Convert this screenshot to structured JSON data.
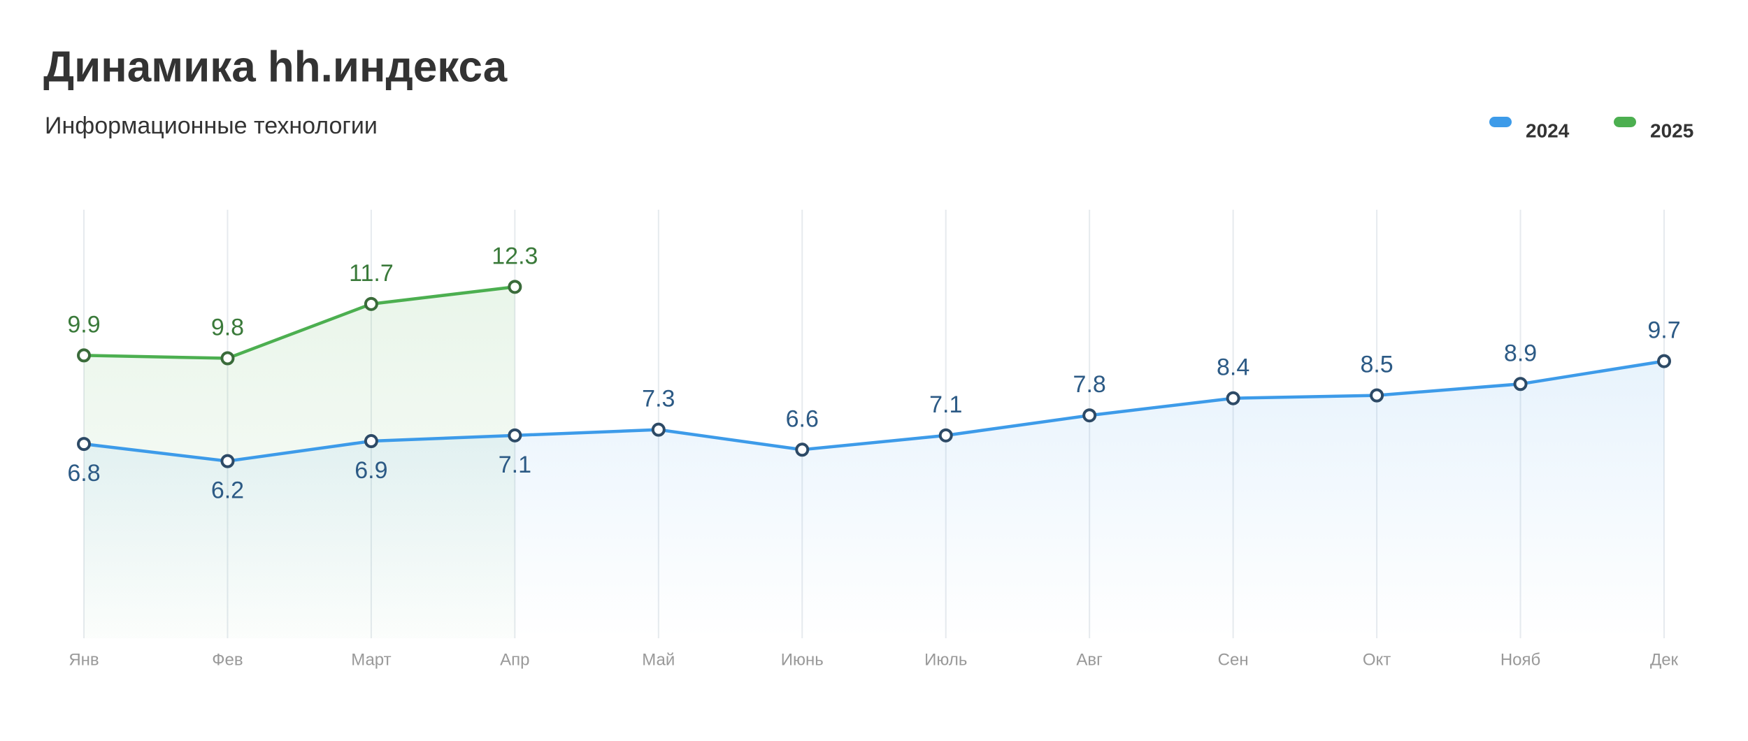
{
  "chart_data": {
    "type": "line",
    "title": "Динамика hh.индекса",
    "subtitle": "Информационные технологии",
    "categories": [
      "Янв",
      "Фев",
      "Март",
      "Апр",
      "Май",
      "Июнь",
      "Июль",
      "Авг",
      "Сен",
      "Окт",
      "Нояб",
      "Дек"
    ],
    "series": [
      {
        "name": "2024",
        "color": "#3d9be9",
        "values": [
          6.8,
          6.2,
          6.9,
          7.1,
          7.3,
          6.6,
          7.1,
          7.8,
          8.4,
          8.5,
          8.9,
          9.7
        ]
      },
      {
        "name": "2025",
        "color": "#4caf50",
        "values": [
          9.9,
          9.8,
          11.7,
          12.3,
          null,
          null,
          null,
          null,
          null,
          null,
          null,
          null
        ]
      }
    ],
    "ylim": [
      0,
      15
    ],
    "grid": true,
    "legend": "top-right"
  }
}
